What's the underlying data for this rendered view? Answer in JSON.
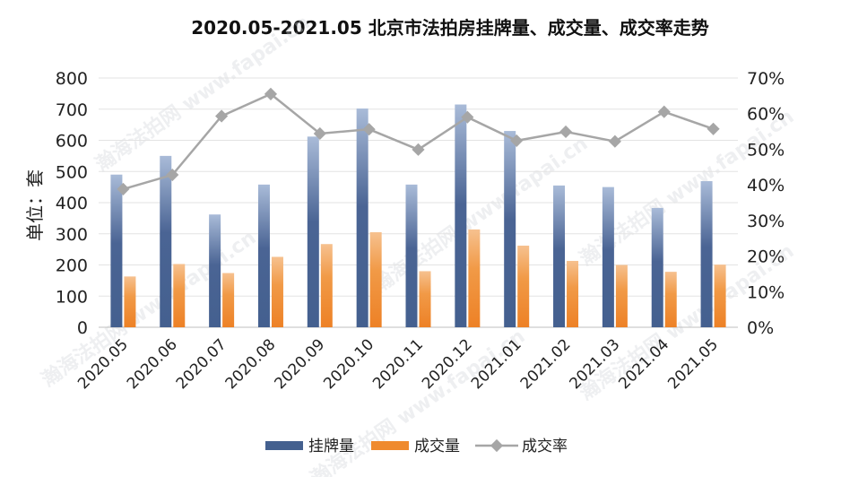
{
  "chart_data": {
    "type": "bar",
    "title": "2020.05-2021.05 北京市法拍房挂牌量、成交量、成交率走势",
    "ylabel": "单位：套",
    "ylim": [
      0,
      800
    ],
    "y2lim": [
      0,
      0.7
    ],
    "yticks": [
      "0",
      "100",
      "200",
      "300",
      "400",
      "500",
      "600",
      "700",
      "800"
    ],
    "y2ticks": [
      "0%",
      "10%",
      "20%",
      "30%",
      "40%",
      "50%",
      "60%",
      "70%"
    ],
    "categories": [
      "2020.05",
      "2020.06",
      "2020.07",
      "2020.08",
      "2020.09",
      "2020.10",
      "2020.11",
      "2020.12",
      "2021.01",
      "2021.02",
      "2021.03",
      "2021.04",
      "2021.05"
    ],
    "series": [
      {
        "name": "挂牌量",
        "type": "bar",
        "axis": "left",
        "color": "#44608f",
        "values": [
          490,
          550,
          362,
          458,
          612,
          702,
          458,
          715,
          630,
          455,
          450,
          383,
          469
        ]
      },
      {
        "name": "成交量",
        "type": "bar",
        "axis": "left",
        "color": "#ef8a2e",
        "values": [
          163,
          203,
          174,
          226,
          267,
          305,
          180,
          314,
          262,
          213,
          200,
          178,
          201
        ]
      },
      {
        "name": "成交率",
        "type": "line",
        "axis": "right",
        "color": "#a6a6a6",
        "values": [
          0.388,
          0.428,
          0.593,
          0.655,
          0.544,
          0.556,
          0.499,
          0.59,
          0.524,
          0.549,
          0.522,
          0.605,
          0.557
        ]
      }
    ],
    "grid": true,
    "legend": "bottom-center"
  },
  "watermark": "瀚海法拍网 www.fapai.cn"
}
